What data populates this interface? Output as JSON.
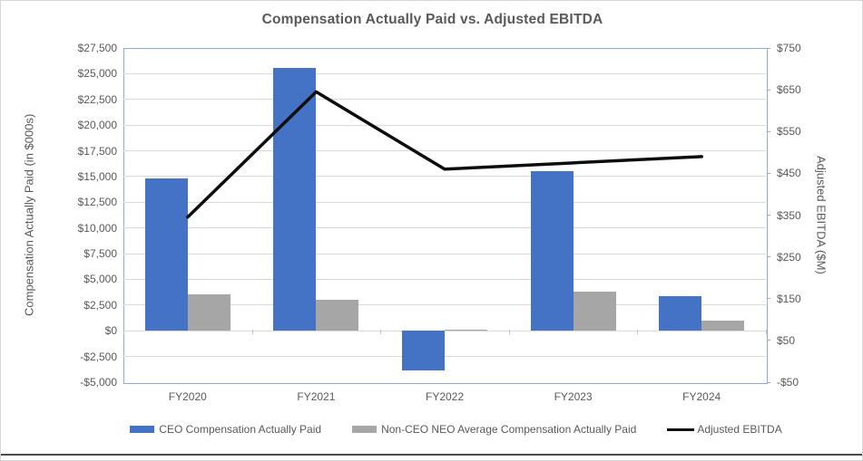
{
  "title": "Compensation Actually Paid vs. Adjusted EBITDA",
  "colors": {
    "ceo_bar": "#4472C4",
    "neo_bar": "#A6A6A6",
    "ebitda_line": "#0D0D0D",
    "plot_border": "#8EA9DB",
    "gridline": "#D9D9D9",
    "text": "#595959"
  },
  "chart_data": {
    "type": "combo-bar-line",
    "categories": [
      "FY2020",
      "FY2021",
      "FY2022",
      "FY2023",
      "FY2024"
    ],
    "series": [
      {
        "name": "CEO Compensation Actually Paid",
        "key": "ceo-compensation",
        "type": "bar",
        "axis": "left",
        "color": "#4472C4",
        "values": [
          14800,
          25600,
          -3850,
          15500,
          3400
        ]
      },
      {
        "name": "Non-CEO NEO Average Compensation Actually Paid",
        "key": "non-ceo-neo-average-compensation",
        "type": "bar",
        "axis": "left",
        "color": "#A6A6A6",
        "values": [
          3500,
          3000,
          150,
          3800,
          1000
        ]
      },
      {
        "name": "Adjusted EBITDA",
        "key": "adjusted-ebitda",
        "type": "line",
        "axis": "right",
        "color": "#0D0D0D",
        "values": [
          345,
          645,
          460,
          475,
          490
        ]
      }
    ],
    "left_axis": {
      "title": "Compensation Actually Paid (in $000s)",
      "min": -5000,
      "max": 27500,
      "step": 2500,
      "tick_values": [
        27500,
        25000,
        22500,
        20000,
        17500,
        15000,
        12500,
        10000,
        7500,
        5000,
        2500,
        0,
        -2500,
        -5000
      ],
      "tick_labels": [
        "$27,500",
        "$25,000",
        "$22,500",
        "$20,000",
        "$17,500",
        "$15,000",
        "$12,500",
        "$10,000",
        "$7,500",
        "$5,000",
        "$2,500",
        "$0",
        "-$2,500",
        "-$5,000"
      ]
    },
    "right_axis": {
      "title": "Adjusted EBITDA ($M)",
      "min": -50,
      "max": 750,
      "step": 100,
      "tick_values": [
        750,
        650,
        550,
        450,
        350,
        250,
        150,
        50,
        -50
      ],
      "tick_labels": [
        "$750",
        "$650",
        "$550",
        "$450",
        "$350",
        "$250",
        "$150",
        "$50",
        "-$50"
      ]
    },
    "legend_position": "bottom",
    "grid": true
  }
}
